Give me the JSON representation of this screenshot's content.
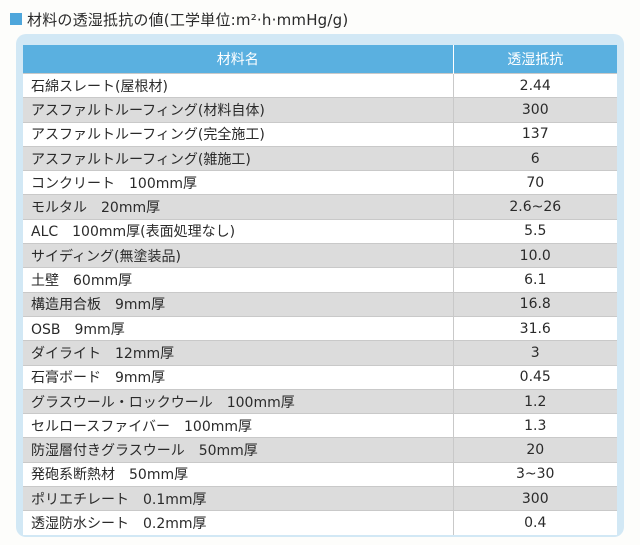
{
  "title": "材料の透湿抵抗の値(工学単位:m²·h·mmHg/g)",
  "accent_color": "#5ab0e0",
  "panel_color": "#d2e8f5",
  "columns": {
    "material": "材料名",
    "resistance": "透湿抵抗"
  },
  "rows": [
    {
      "material": "石綿スレート(屋根材)",
      "resistance": "2.44"
    },
    {
      "material": "アスファルトルーフィング(材料自体)",
      "resistance": "300"
    },
    {
      "material": "アスファルトルーフィング(完全施工)",
      "resistance": "137"
    },
    {
      "material": "アスファルトルーフィング(雑施工)",
      "resistance": "6"
    },
    {
      "material": "コンクリート　100mm厚",
      "resistance": "70"
    },
    {
      "material": "モルタル　20mm厚",
      "resistance": "2.6~26"
    },
    {
      "material": "ALC　100mm厚(表面処理なし)",
      "resistance": "5.5"
    },
    {
      "material": "サイディング(無塗装品)",
      "resistance": "10.0"
    },
    {
      "material": "土壁　60mm厚",
      "resistance": "6.1"
    },
    {
      "material": "構造用合板　9mm厚",
      "resistance": "16.8"
    },
    {
      "material": "OSB　9mm厚",
      "resistance": "31.6"
    },
    {
      "material": "ダイライト　12mm厚",
      "resistance": "3"
    },
    {
      "material": "石膏ボード　9mm厚",
      "resistance": "0.45"
    },
    {
      "material": "グラスウール・ロックウール　100mm厚",
      "resistance": "1.2"
    },
    {
      "material": "セルロースファイバー　100mm厚",
      "resistance": "1.3"
    },
    {
      "material": "防湿層付きグラスウール　50mm厚",
      "resistance": "20"
    },
    {
      "material": "発砲系断熱材　50mm厚",
      "resistance": "3~30"
    },
    {
      "material": "ポリエチレート　0.1mm厚",
      "resistance": "300"
    },
    {
      "material": "透湿防水シート　0.2mm厚",
      "resistance": "0.4"
    }
  ]
}
